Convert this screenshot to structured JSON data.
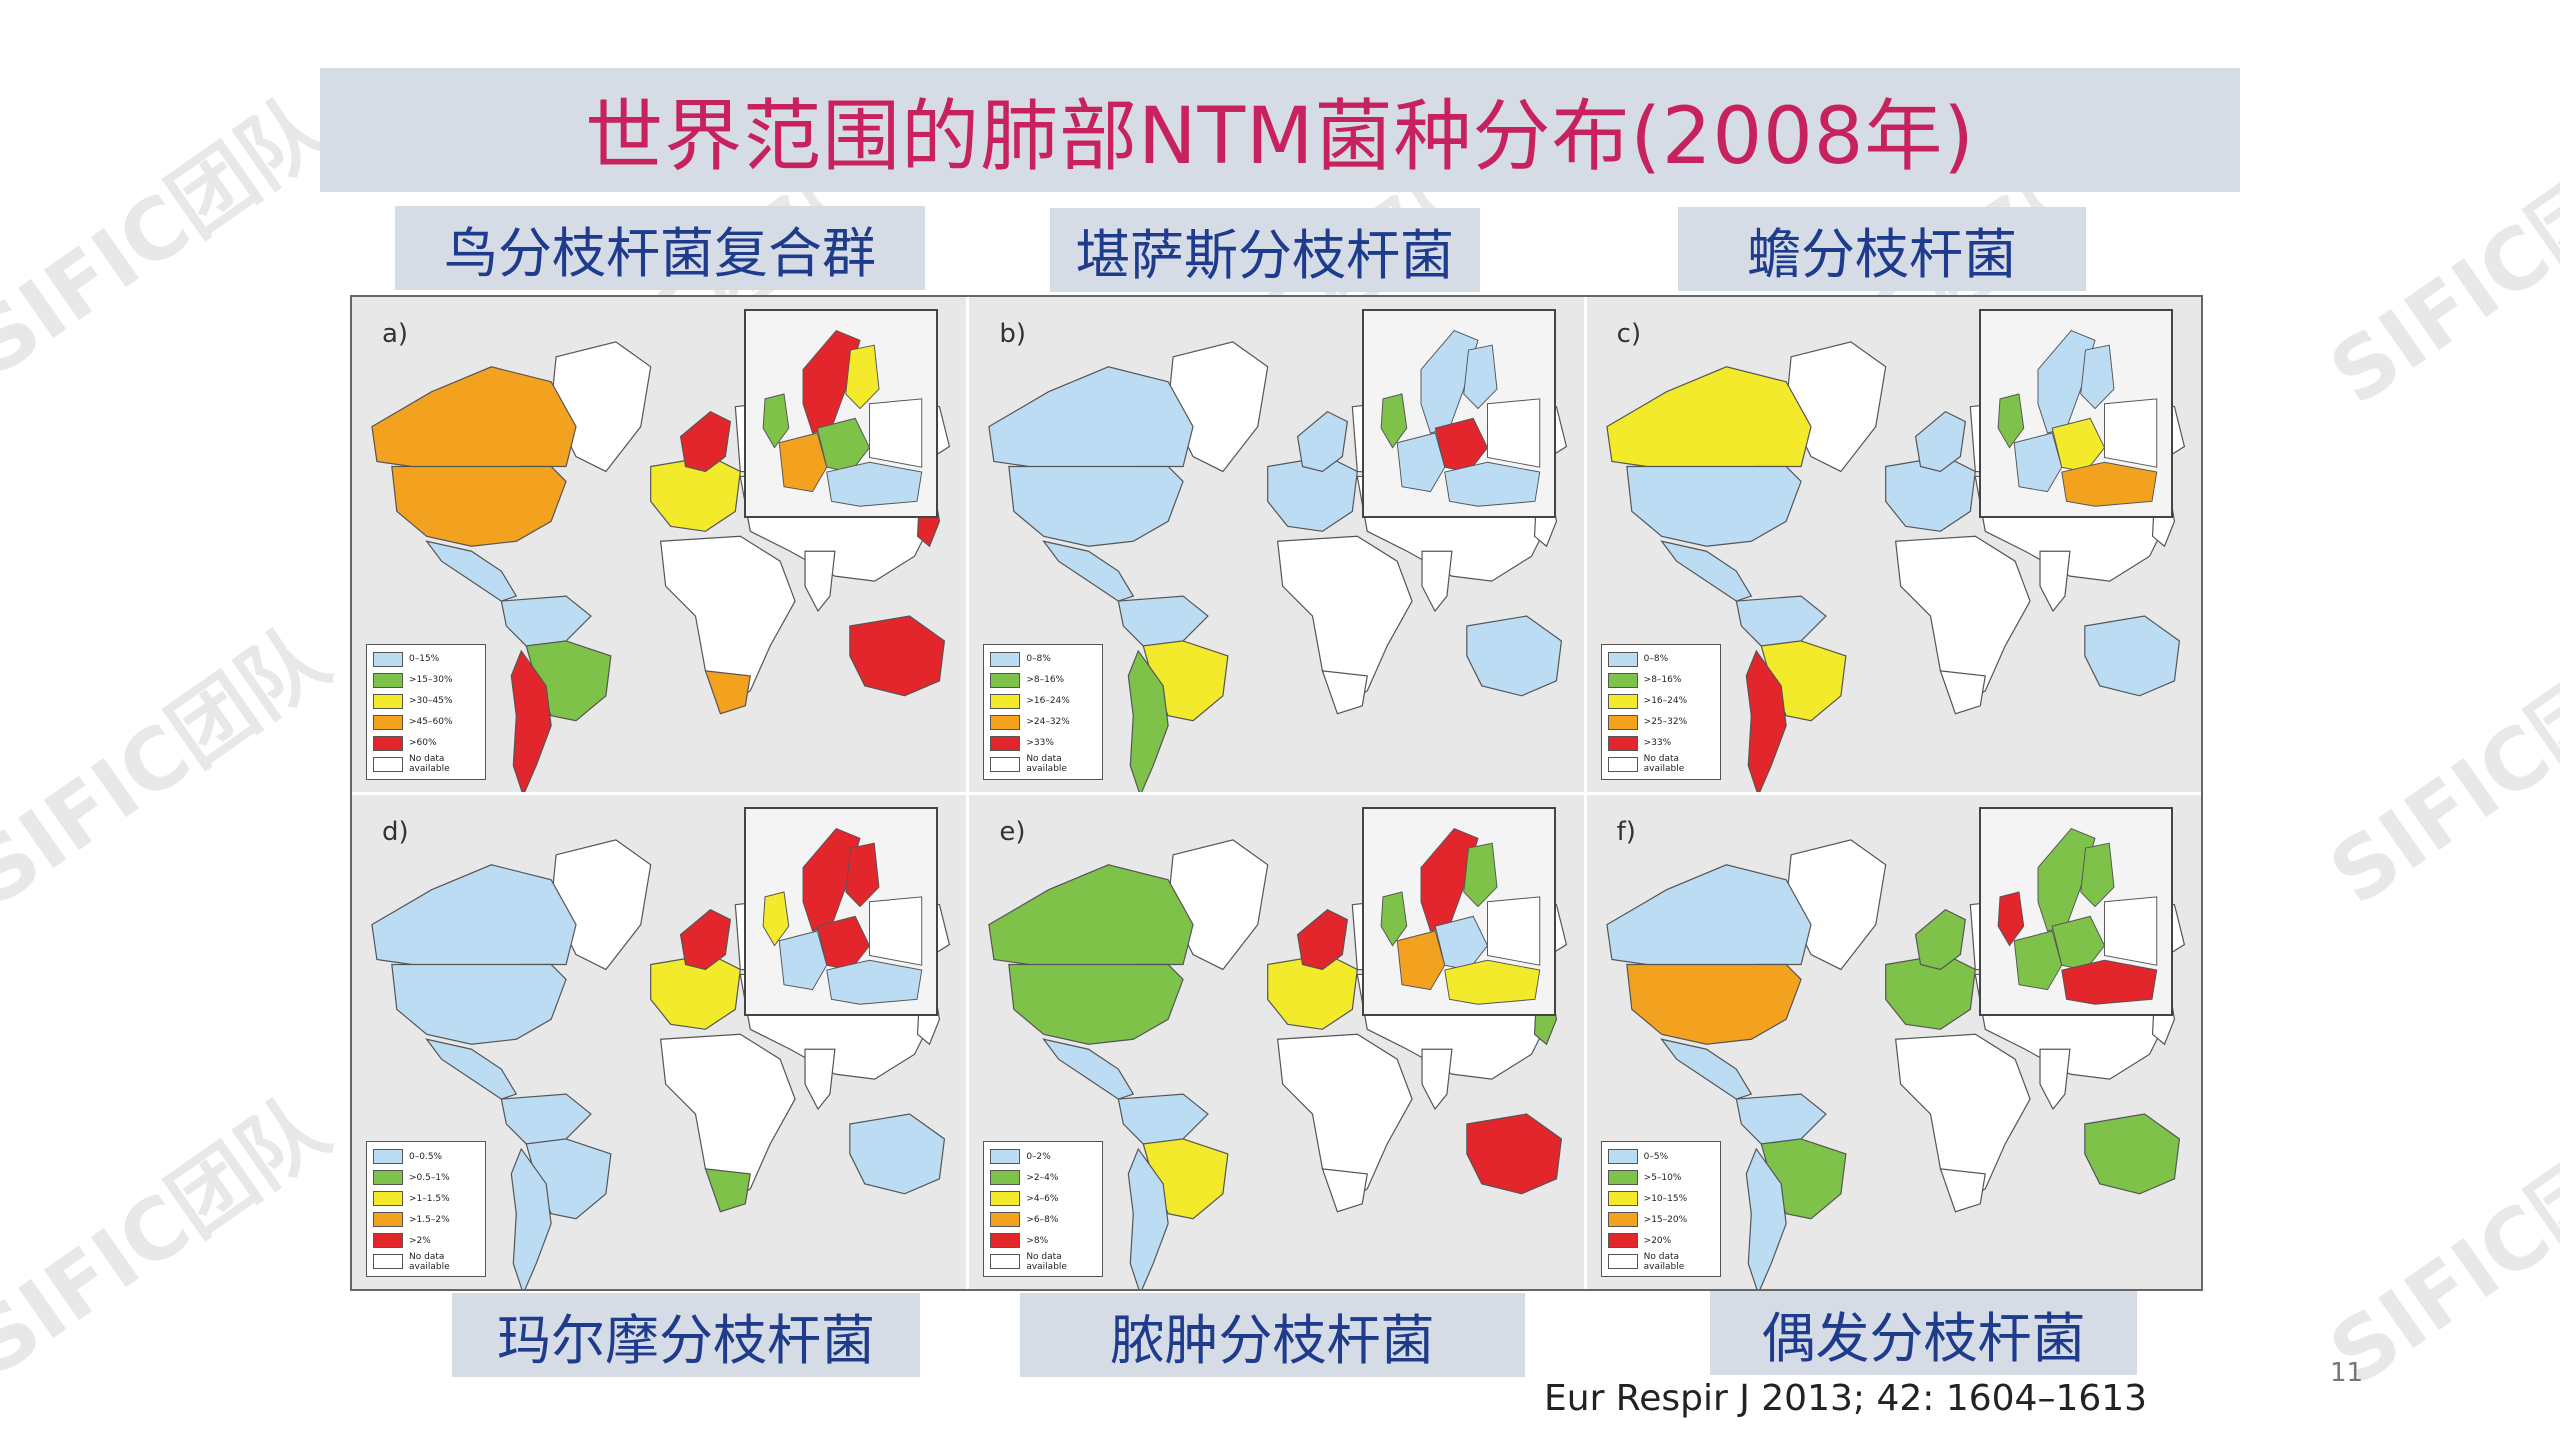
{
  "title": "世界范围的肺部NTM菌种分布(2008年)",
  "labels": {
    "mac": "鸟分枝杆菌复合群",
    "kansasii": "堪萨斯分枝杆菌",
    "xenopi": "蟾分枝杆菌",
    "malmoense": "玛尔摩分枝杆菌",
    "abscessus": "脓肿分枝杆菌",
    "fortuitum": "偶发分枝杆菌"
  },
  "citation": "Eur Respir J 2013; 42: 1604–1613",
  "page_number": "11",
  "watermark": "SIFIC团队",
  "colors": {
    "c0": "#bcdcf4",
    "c1": "#7ec24a",
    "c2": "#f2ea2a",
    "c3": "#f3a21f",
    "c4": "#e3262c",
    "na": "#ffffff",
    "ocean": "#e8e8e8"
  },
  "panels": [
    {
      "letter": "a)",
      "legend": [
        "0–15%",
        ">15–30%",
        ">30–45%",
        ">45–60%",
        ">60%",
        "No data available"
      ],
      "regions": {
        "greenland": "na",
        "northam": "c3",
        "usa": "c3",
        "centralam": "c0",
        "southam_n": "c0",
        "brazil": "c1",
        "southam_s": "c4",
        "europe": "c2",
        "scandinavia": "c4",
        "russia": "na",
        "africa": "na",
        "southafrica": "c3",
        "asia": "na",
        "india": "na",
        "japan": "c4",
        "australia": "c4"
      },
      "inset": {
        "scandinavia": "c4",
        "finland": "c2",
        "uk": "c1",
        "west": "c3",
        "central": "c1",
        "east": "na",
        "south": "c0"
      }
    },
    {
      "letter": "b)",
      "legend": [
        "0–8%",
        ">8–16%",
        ">16–24%",
        ">24–32%",
        ">33%",
        "No data available"
      ],
      "regions": {
        "greenland": "na",
        "northam": "c0",
        "usa": "c0",
        "centralam": "c0",
        "southam_n": "c0",
        "brazil": "c2",
        "southam_s": "c1",
        "europe": "c0",
        "scandinavia": "c0",
        "russia": "na",
        "africa": "na",
        "southafrica": "na",
        "asia": "na",
        "india": "na",
        "japan": "na",
        "australia": "c0"
      },
      "inset": {
        "scandinavia": "c0",
        "finland": "c0",
        "uk": "c1",
        "west": "c0",
        "central": "c4",
        "east": "na",
        "south": "c0"
      }
    },
    {
      "letter": "c)",
      "legend": [
        "0–8%",
        ">8–16%",
        ">16–24%",
        ">25–32%",
        ">33%",
        "No data available"
      ],
      "regions": {
        "greenland": "na",
        "northam": "c2",
        "usa": "c0",
        "centralam": "c0",
        "southam_n": "c0",
        "brazil": "c2",
        "southam_s": "c4",
        "europe": "c0",
        "scandinavia": "c0",
        "russia": "na",
        "africa": "na",
        "southafrica": "na",
        "asia": "na",
        "india": "na",
        "japan": "na",
        "australia": "c0"
      },
      "inset": {
        "scandinavia": "c0",
        "finland": "c0",
        "uk": "c1",
        "west": "c0",
        "central": "c2",
        "east": "na",
        "south": "c3"
      }
    },
    {
      "letter": "d)",
      "legend": [
        "0–0.5%",
        ">0.5–1%",
        ">1–1.5%",
        ">1.5–2%",
        ">2%",
        "No data available"
      ],
      "regions": {
        "greenland": "na",
        "northam": "c0",
        "usa": "c0",
        "centralam": "c0",
        "southam_n": "c0",
        "brazil": "c0",
        "southam_s": "c0",
        "europe": "c2",
        "scandinavia": "c4",
        "russia": "na",
        "africa": "na",
        "southafrica": "c1",
        "asia": "na",
        "india": "na",
        "japan": "na",
        "australia": "c0"
      },
      "inset": {
        "scandinavia": "c4",
        "finland": "c4",
        "uk": "c2",
        "west": "c0",
        "central": "c4",
        "east": "na",
        "south": "c0"
      }
    },
    {
      "letter": "e)",
      "legend": [
        "0–2%",
        ">2–4%",
        ">4–6%",
        ">6–8%",
        ">8%",
        "No data available"
      ],
      "regions": {
        "greenland": "na",
        "northam": "c1",
        "usa": "c1",
        "centralam": "c0",
        "southam_n": "c0",
        "brazil": "c2",
        "southam_s": "c0",
        "europe": "c2",
        "scandinavia": "c4",
        "russia": "na",
        "africa": "na",
        "southafrica": "na",
        "asia": "na",
        "india": "na",
        "japan": "c1",
        "australia": "c4"
      },
      "inset": {
        "scandinavia": "c4",
        "finland": "c1",
        "uk": "c1",
        "west": "c3",
        "central": "c0",
        "east": "na",
        "south": "c2"
      }
    },
    {
      "letter": "f)",
      "legend": [
        "0–5%",
        ">5–10%",
        ">10–15%",
        ">15–20%",
        ">20%",
        "No data available"
      ],
      "regions": {
        "greenland": "na",
        "northam": "c0",
        "usa": "c3",
        "centralam": "c0",
        "southam_n": "c0",
        "brazil": "c1",
        "southam_s": "c0",
        "europe": "c1",
        "scandinavia": "c1",
        "russia": "na",
        "africa": "na",
        "southafrica": "na",
        "asia": "na",
        "india": "na",
        "japan": "na",
        "australia": "c1"
      },
      "inset": {
        "scandinavia": "c1",
        "finland": "c1",
        "uk": "c4",
        "west": "c1",
        "central": "c1",
        "east": "na",
        "south": "c4"
      }
    }
  ]
}
